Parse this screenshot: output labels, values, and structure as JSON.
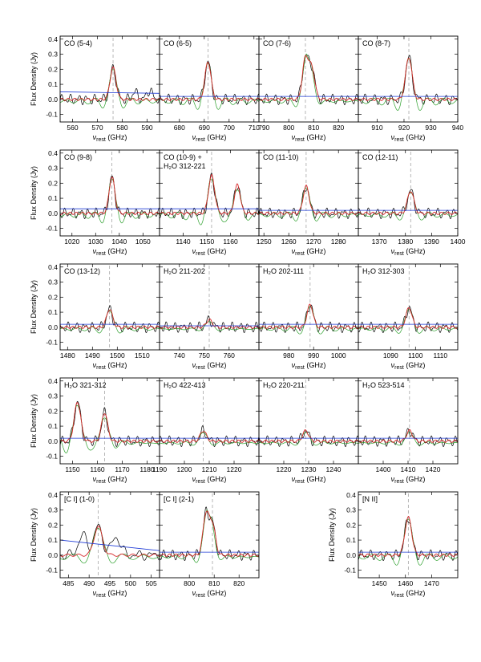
{
  "figure": {
    "ylabel": "Flux Density (Jy)",
    "xlabel_main": "ν",
    "xlabel_sub": "rest",
    "xlabel_unit": "(GHz)",
    "colors": {
      "observed": "#000000",
      "model": "#d62728",
      "component": "#2ca02c",
      "continuum": "#1f3bd6",
      "line_marker": "#999999"
    }
  },
  "chart_data": [
    {
      "type": "line",
      "label": "CO (5-4)",
      "xlim": [
        555,
        595
      ],
      "xticks": [
        560,
        570,
        580,
        590
      ],
      "ylim": [
        -0.15,
        0.42
      ],
      "yticks": [
        -0.1,
        0.0,
        0.1,
        0.2,
        0.3,
        0.4
      ],
      "line_center": 576.3,
      "peaks": [
        {
          "x": 576.3,
          "amp": 0.21,
          "w": 1.2
        }
      ],
      "continuum": [
        0.05,
        0.04
      ],
      "bumps": [
        {
          "x": 585,
          "amp": 0.05
        },
        {
          "x": 591,
          "amp": 0.06
        }
      ]
    },
    {
      "type": "line",
      "label": "CO (6-5)",
      "xlim": [
        672,
        712
      ],
      "xticks": [
        680,
        690,
        700,
        710
      ],
      "ylim": [
        -0.15,
        0.42
      ],
      "yticks": [
        -0.1,
        0.0,
        0.1,
        0.2,
        0.3,
        0.4
      ],
      "line_center": 691.5,
      "peaks": [
        {
          "x": 691.5,
          "amp": 0.25,
          "w": 1.2
        }
      ],
      "continuum": [
        0.02,
        0.02
      ],
      "bumps": []
    },
    {
      "type": "line",
      "label": "CO (7-6)",
      "xlim": [
        788,
        828
      ],
      "xticks": [
        790,
        800,
        810,
        820
      ],
      "ylim": [
        -0.15,
        0.42
      ],
      "yticks": [
        -0.1,
        0.0,
        0.1,
        0.2,
        0.3,
        0.4
      ],
      "line_center": 806.7,
      "peaks": [
        {
          "x": 806.7,
          "amp": 0.27,
          "w": 1.2
        },
        {
          "x": 809.3,
          "amp": 0.2,
          "w": 1.2
        }
      ],
      "continuum": [
        0.02,
        0.02
      ],
      "bumps": []
    },
    {
      "type": "line",
      "label": "CO (8-7)",
      "xlim": [
        903,
        940
      ],
      "xticks": [
        910,
        920,
        930,
        940
      ],
      "ylim": [
        -0.15,
        0.42
      ],
      "yticks": [
        -0.1,
        0.0,
        0.1,
        0.2,
        0.3,
        0.4
      ],
      "line_center": 921.8,
      "peaks": [
        {
          "x": 921.8,
          "amp": 0.28,
          "w": 1.2
        }
      ],
      "continuum": [
        0.02,
        0.02
      ],
      "bumps": []
    },
    {
      "type": "line",
      "label": "CO (9-8)",
      "xlim": [
        1015,
        1057
      ],
      "xticks": [
        1020,
        1030,
        1040,
        1050
      ],
      "ylim": [
        -0.15,
        0.42
      ],
      "yticks": [
        -0.1,
        0.0,
        0.1,
        0.2,
        0.3,
        0.4
      ],
      "line_center": 1036.9,
      "peaks": [
        {
          "x": 1036.9,
          "amp": 0.24,
          "w": 1.2
        }
      ],
      "continuum": [
        0.03,
        0.03
      ],
      "bumps": []
    },
    {
      "type": "line",
      "label": "CO (10-9) +",
      "label2": "H₂O 312-221",
      "xlim": [
        1130,
        1172
      ],
      "xticks": [
        1140,
        1150,
        1160
      ],
      "ylim": [
        -0.15,
        0.42
      ],
      "yticks": [
        -0.1,
        0.0,
        0.1,
        0.2,
        0.3,
        0.4
      ],
      "line_center": 1152,
      "peaks": [
        {
          "x": 1152.0,
          "amp": 0.25,
          "w": 1.3
        },
        {
          "x": 1162.9,
          "amp": 0.19,
          "w": 1.2
        }
      ],
      "continuum": [
        0.03,
        0.03
      ],
      "bumps": []
    },
    {
      "type": "line",
      "label": "CO (11-10)",
      "xlim": [
        1248,
        1288
      ],
      "xticks": [
        1250,
        1260,
        1270,
        1280
      ],
      "ylim": [
        -0.15,
        0.42
      ],
      "yticks": [
        -0.1,
        0.0,
        0.1,
        0.2,
        0.3,
        0.4
      ],
      "line_center": 1267,
      "peaks": [
        {
          "x": 1267.0,
          "amp": 0.18,
          "w": 1.2
        }
      ],
      "continuum": [
        0.02,
        0.02
      ],
      "bumps": []
    },
    {
      "type": "line",
      "label": "CO (12-11)",
      "xlim": [
        1362,
        1400
      ],
      "xticks": [
        1370,
        1380,
        1390,
        1400
      ],
      "ylim": [
        -0.15,
        0.42
      ],
      "yticks": [
        -0.1,
        0.0,
        0.1,
        0.2,
        0.3,
        0.4
      ],
      "line_center": 1382,
      "peaks": [
        {
          "x": 1382.0,
          "amp": 0.15,
          "w": 1.2
        }
      ],
      "continuum": [
        0.02,
        0.02
      ],
      "bumps": []
    },
    {
      "type": "line",
      "label": "CO (13-12)",
      "xlim": [
        1477,
        1517
      ],
      "xticks": [
        1480,
        1490,
        1500,
        1510
      ],
      "ylim": [
        -0.15,
        0.42
      ],
      "yticks": [
        -0.1,
        0.0,
        0.1,
        0.2,
        0.3,
        0.4
      ],
      "line_center": 1496.9,
      "peaks": [
        {
          "x": 1496.9,
          "amp": 0.12,
          "w": 1.2
        }
      ],
      "continuum": [
        0.02,
        0.02
      ],
      "bumps": []
    },
    {
      "type": "line",
      "label": "H₂O 211-202",
      "xlim": [
        732,
        772
      ],
      "xticks": [
        740,
        750,
        760
      ],
      "ylim": [
        -0.15,
        0.42
      ],
      "yticks": [
        -0.1,
        0.0,
        0.1,
        0.2,
        0.3,
        0.4
      ],
      "line_center": 752,
      "peaks": [
        {
          "x": 752.0,
          "amp": 0.05,
          "w": 1.2
        }
      ],
      "continuum": [
        0.01,
        0.01
      ],
      "bumps": []
    },
    {
      "type": "line",
      "label": "H₂O 202-111",
      "xlim": [
        968,
        1008
      ],
      "xticks": [
        980,
        990,
        1000
      ],
      "ylim": [
        -0.15,
        0.42
      ],
      "yticks": [
        -0.1,
        0.0,
        0.1,
        0.2,
        0.3,
        0.4
      ],
      "line_center": 988.6,
      "peaks": [
        {
          "x": 988.6,
          "amp": 0.15,
          "w": 1.2
        }
      ],
      "continuum": [
        0.02,
        0.02
      ],
      "bumps": []
    },
    {
      "type": "line",
      "label": "H₂O 312-303",
      "xlim": [
        1077,
        1117
      ],
      "xticks": [
        1090,
        1100,
        1110
      ],
      "ylim": [
        -0.15,
        0.42
      ],
      "yticks": [
        -0.1,
        0.0,
        0.1,
        0.2,
        0.3,
        0.4
      ],
      "line_center": 1097.4,
      "peaks": [
        {
          "x": 1097.4,
          "amp": 0.13,
          "w": 1.2
        }
      ],
      "continuum": [
        0.02,
        0.02
      ],
      "bumps": []
    },
    {
      "type": "line",
      "label": "H₂O 321-312",
      "xlim": [
        1145,
        1185
      ],
      "xticks": [
        1150,
        1160,
        1170,
        1180
      ],
      "ylim": [
        -0.15,
        0.42
      ],
      "yticks": [
        -0.1,
        0.0,
        0.1,
        0.2,
        0.3,
        0.4
      ],
      "line_center": 1162.9,
      "peaks": [
        {
          "x": 1152.0,
          "amp": 0.26,
          "w": 1.3
        },
        {
          "x": 1162.9,
          "amp": 0.19,
          "w": 1.2
        }
      ],
      "continuum": [
        0.02,
        0.02
      ],
      "bumps": []
    },
    {
      "type": "line",
      "label": "H₂O 422-413",
      "xlim": [
        1190,
        1230
      ],
      "xticks": [
        1190,
        1200,
        1210,
        1220
      ],
      "ylim": [
        -0.15,
        0.42
      ],
      "yticks": [
        -0.1,
        0.0,
        0.1,
        0.2,
        0.3,
        0.4
      ],
      "line_center": 1207.6,
      "peaks": [
        {
          "x": 1207.6,
          "amp": 0.07,
          "w": 1.2
        }
      ],
      "continuum": [
        0.02,
        0.02
      ],
      "bumps": []
    },
    {
      "type": "line",
      "label": "H₂O 220-211",
      "xlim": [
        1210,
        1250
      ],
      "xticks": [
        1220,
        1230,
        1240
      ],
      "ylim": [
        -0.15,
        0.42
      ],
      "yticks": [
        -0.1,
        0.0,
        0.1,
        0.2,
        0.3,
        0.4
      ],
      "line_center": 1228.8,
      "peaks": [
        {
          "x": 1228.8,
          "amp": 0.07,
          "w": 1.2
        }
      ],
      "continuum": [
        0.02,
        0.02
      ],
      "bumps": []
    },
    {
      "type": "line",
      "label": "H₂O 523-514",
      "xlim": [
        1390,
        1430
      ],
      "xticks": [
        1400,
        1410,
        1420
      ],
      "ylim": [
        -0.15,
        0.42
      ],
      "yticks": [
        -0.1,
        0.0,
        0.1,
        0.2,
        0.3,
        0.4
      ],
      "line_center": 1410.6,
      "peaks": [
        {
          "x": 1410.6,
          "amp": 0.07,
          "w": 1.2
        }
      ],
      "continuum": [
        0.02,
        0.02
      ],
      "bumps": []
    },
    {
      "type": "line",
      "label": "[C I] (1-0)",
      "xlim": [
        483,
        507
      ],
      "xticks": [
        485,
        490,
        495,
        500,
        505
      ],
      "ylim": [
        -0.15,
        0.42
      ],
      "yticks": [
        -0.1,
        0.0,
        0.1,
        0.2,
        0.3,
        0.4
      ],
      "line_center": 492.2,
      "peaks": [
        {
          "x": 492.2,
          "amp": 0.19,
          "w": 1.0
        }
      ],
      "continuum": [
        0.1,
        0.03
      ],
      "bumps": [
        {
          "x": 488.5,
          "amp": 0.13
        },
        {
          "x": 496.5,
          "amp": 0.12
        }
      ]
    },
    {
      "type": "line",
      "label": "[C I] (2-1)",
      "xlim": [
        788,
        828
      ],
      "xticks": [
        800,
        810,
        820
      ],
      "ylim": [
        -0.15,
        0.42
      ],
      "yticks": [
        -0.1,
        0.0,
        0.1,
        0.2,
        0.3,
        0.4
      ],
      "line_center": 809.3,
      "peaks": [
        {
          "x": 806.7,
          "amp": 0.27,
          "w": 1.2
        },
        {
          "x": 809.3,
          "amp": 0.2,
          "w": 1.2
        }
      ],
      "continuum": [
        0.02,
        0.02
      ],
      "bumps": []
    },
    {
      "type": "line",
      "label": "[N II]",
      "xlim": [
        1442,
        1480
      ],
      "xticks": [
        1450,
        1460,
        1470
      ],
      "ylim": [
        -0.15,
        0.42
      ],
      "yticks": [
        -0.1,
        0.0,
        0.1,
        0.2,
        0.3,
        0.4
      ],
      "line_center": 1461.1,
      "peaks": [
        {
          "x": 1461.1,
          "amp": 0.25,
          "w": 1.3
        }
      ],
      "continuum": [
        0.02,
        0.02
      ],
      "bumps": []
    }
  ]
}
